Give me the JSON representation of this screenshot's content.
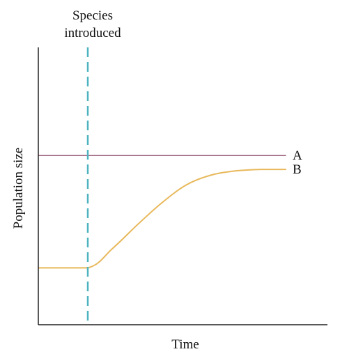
{
  "chart_data": {
    "type": "line",
    "title": "",
    "xlabel": "Time",
    "ylabel": "Population size",
    "xlim": [
      0,
      10
    ],
    "ylim": [
      0,
      10
    ],
    "grid": false,
    "axis_color": "#222222",
    "annotation": {
      "label_lines": [
        "Species",
        "introduced"
      ],
      "x": 2,
      "color": "#4fb3bf",
      "style": "dashed"
    },
    "series": [
      {
        "name": "A",
        "color": "#8e4a6b",
        "x": [
          0,
          10
        ],
        "y": [
          6.1,
          6.1
        ]
      },
      {
        "name": "B",
        "color": "#e8b85a",
        "x": [
          0,
          2,
          3,
          4,
          5,
          6,
          7,
          8,
          9,
          10
        ],
        "y": [
          2.05,
          2.05,
          2.75,
          3.6,
          4.4,
          5.05,
          5.4,
          5.55,
          5.6,
          5.6
        ]
      }
    ]
  }
}
